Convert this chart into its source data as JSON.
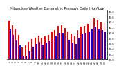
{
  "title": "Milwaukee Weather Barometric Pressure Daily High/Low",
  "bar_width": 0.38,
  "ylim": [
    29.0,
    30.85
  ],
  "ytick_values": [
    29.0,
    29.2,
    29.4,
    29.6,
    29.8,
    30.0,
    30.2,
    30.4,
    30.6,
    30.8
  ],
  "high_color": "#FF0000",
  "low_color": "#0000FF",
  "background_color": "#FFFFFF",
  "highs": [
    30.45,
    30.28,
    30.15,
    29.9,
    29.45,
    29.52,
    29.65,
    29.75,
    29.82,
    29.88,
    29.78,
    29.85,
    29.92,
    30.05,
    30.12,
    30.25,
    30.28,
    30.18,
    30.05,
    29.95,
    29.88,
    30.1,
    30.22,
    30.25,
    30.32,
    30.42,
    30.55,
    30.48,
    30.4,
    30.35
  ],
  "lows": [
    30.15,
    29.92,
    29.7,
    29.52,
    29.12,
    29.15,
    29.28,
    29.48,
    29.58,
    29.65,
    29.55,
    29.62,
    29.68,
    29.75,
    29.88,
    30.0,
    29.98,
    29.85,
    29.72,
    29.62,
    29.58,
    29.82,
    29.95,
    29.98,
    30.05,
    30.15,
    30.22,
    30.15,
    30.1,
    30.05
  ],
  "xlabels": [
    "1",
    "2",
    "3",
    "4",
    "5",
    "6",
    "7",
    "8",
    "9",
    "10",
    "11",
    "12",
    "13",
    "14",
    "15",
    "16",
    "17",
    "18",
    "19",
    "20",
    "21",
    "22",
    "23",
    "24",
    "25",
    "26",
    "27",
    "28",
    "29",
    "30"
  ],
  "title_fontsize": 3.5,
  "tick_fontsize": 2.8,
  "xlabel_fontsize": 2.2
}
